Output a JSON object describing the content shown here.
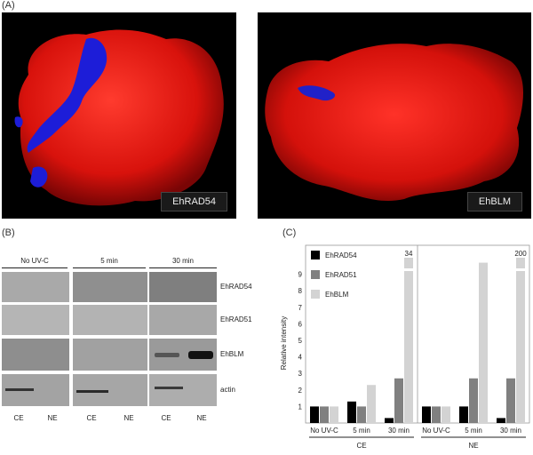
{
  "panel_a": {
    "label": "(A)",
    "left_protein": "EhRAD54",
    "right_protein": "EhBLM"
  },
  "panel_b": {
    "label": "(B)",
    "conditions": [
      "No UV-C",
      "5 min",
      "30 min"
    ],
    "rows": [
      "EhRAD54",
      "EhRAD51",
      "EhBLM",
      "actin"
    ],
    "lanes": [
      "CE",
      "NE",
      "CE",
      "NE",
      "CE",
      "NE"
    ]
  },
  "panel_c": {
    "label": "(C)"
  },
  "chart_data": {
    "type": "bar",
    "ylabel": "Relative intensity",
    "yticks": [
      "1",
      "2",
      "3",
      "4",
      "5",
      "6",
      "7",
      "8",
      "9"
    ],
    "ylim": [
      0,
      10
    ],
    "groups": [
      "CE",
      "NE"
    ],
    "categories": [
      "No UV-C",
      "5 min",
      "30 min",
      "No UV-C",
      "5 min",
      "30 min"
    ],
    "series": [
      {
        "name": "EhRAD54",
        "color": "#000000",
        "values": [
          1,
          1.3,
          0.3,
          1,
          1,
          0.3
        ]
      },
      {
        "name": "EhRAD51",
        "color": "#808080",
        "values": [
          1,
          1,
          2.7,
          1,
          2.7,
          2.7
        ]
      },
      {
        "name": "EhBLM",
        "color": "#d3d3d3",
        "values": [
          1,
          2.3,
          10,
          1,
          9.7,
          10
        ]
      }
    ],
    "broken_bar_labels": [
      {
        "category_index": 2,
        "label": "34"
      },
      {
        "category_index": 5,
        "label": "200"
      }
    ]
  }
}
